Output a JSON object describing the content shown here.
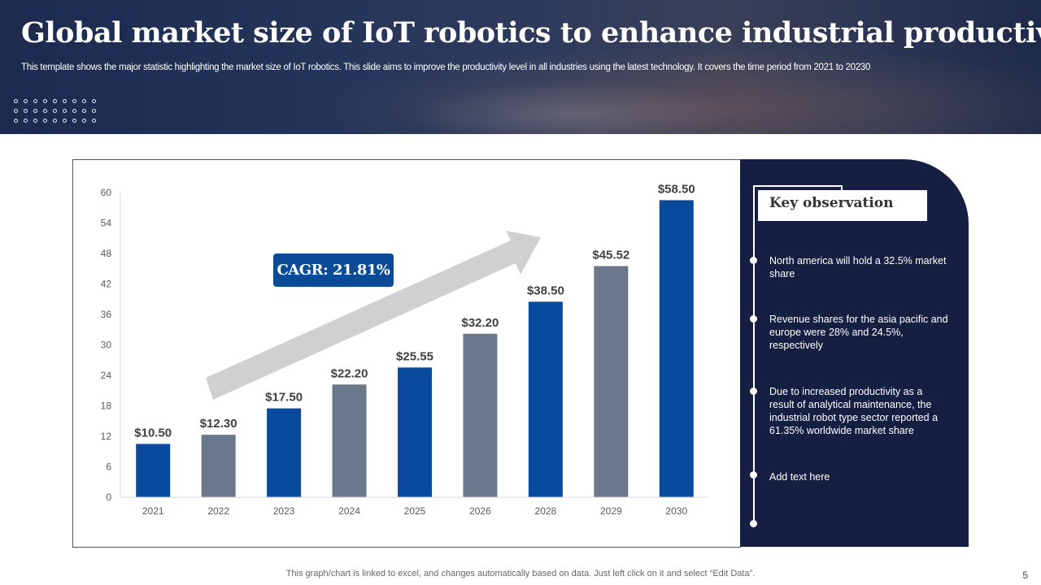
{
  "header": {
    "title": "Global market size of IoT robotics to enhance industrial productivity",
    "subtitle": "This template shows the major statistic highlighting the market size of IoT robotics. This slide aims to improve the productivity level in all industries using the latest technology. It covers the time period from 2021 to 20230"
  },
  "chart_data": {
    "type": "bar",
    "categories": [
      "2021",
      "2022",
      "2023",
      "2024",
      "2025",
      "2026",
      "2028",
      "2029",
      "2030"
    ],
    "values": [
      10.5,
      12.3,
      17.5,
      22.2,
      25.55,
      32.2,
      38.5,
      45.52,
      58.5
    ],
    "data_labels": [
      "$10.50",
      "$12.30",
      "$17.50",
      "$22.20",
      "$25.55",
      "$32.20",
      "$38.50",
      "$45.52",
      "$58.50"
    ],
    "yticks": [
      0,
      6,
      12,
      18,
      24,
      30,
      36,
      42,
      48,
      54,
      60
    ],
    "ylim": [
      0,
      60
    ],
    "grid": false,
    "colors": [
      "#0a4a9c",
      "#6b778b"
    ],
    "annotation": "CAGR: 21.81%",
    "annotation_color": "#0b4a96"
  },
  "panel": {
    "title": "Key observation",
    "items": [
      "North america will hold a 32.5% market share",
      "Revenue  shares for the asia pacific and europe were 28% and 24.5%, respectively",
      "Due to increased productivity  as a result of analytical maintenance, the industrial robot type sector reported a 61.35% worldwide  market share",
      "Add text here"
    ]
  },
  "footer": {
    "note": "This graph/chart is linked to excel,  and changes automatically based on data. Just left click on it and select “Edit Data”.",
    "page": "5"
  }
}
